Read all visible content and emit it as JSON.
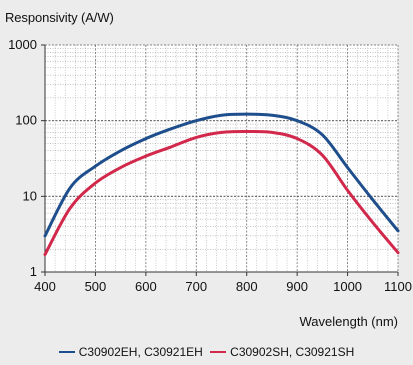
{
  "chart_data": {
    "type": "line",
    "title": "",
    "xlabel": "Wavelength (nm)",
    "ylabel": "Responsivity (A/W)",
    "xlim": [
      400,
      1100
    ],
    "ylim": [
      1,
      1000
    ],
    "y_scale": "log",
    "x_ticks": [
      400,
      500,
      600,
      700,
      800,
      900,
      1000,
      1100
    ],
    "y_ticks": [
      1,
      10,
      100,
      1000
    ],
    "grid": true,
    "legend_position": "bottom",
    "series": [
      {
        "name": "C30902EH, C30921EH",
        "color": "#1f4e8c",
        "x": [
          400,
          450,
          500,
          550,
          600,
          650,
          700,
          750,
          800,
          850,
          900,
          950,
          1000,
          1050,
          1100
        ],
        "y": [
          3,
          13,
          25,
          40,
          58,
          78,
          100,
          118,
          122,
          118,
          100,
          65,
          24,
          9,
          3.5
        ]
      },
      {
        "name": "C30902SH, C30921SH",
        "color": "#d1284b",
        "x": [
          400,
          450,
          500,
          550,
          600,
          650,
          700,
          750,
          800,
          850,
          900,
          950,
          1000,
          1050,
          1100
        ],
        "y": [
          1.7,
          7,
          15,
          24,
          34,
          45,
          60,
          70,
          72,
          70,
          58,
          35,
          12,
          4.5,
          1.8
        ]
      }
    ]
  }
}
